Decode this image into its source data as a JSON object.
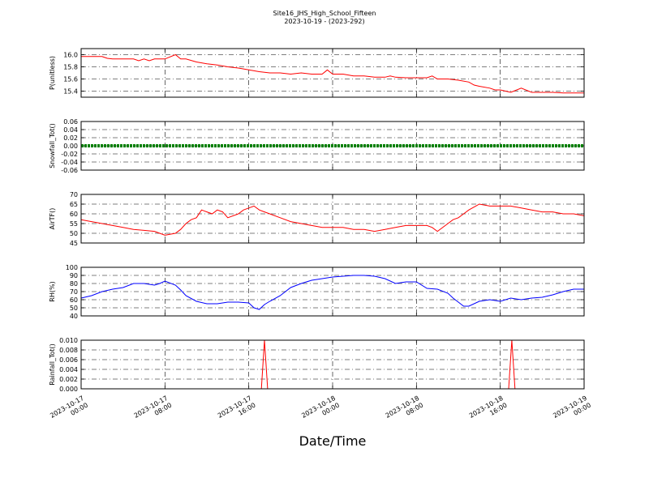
{
  "title": "Site16_JHS_High_School_Fifteen",
  "subtitle": "2023-10-19 - (2023-292)",
  "xlabel": "Date/Time",
  "x_ticks": [
    {
      "line1": "2023-10-17",
      "line2": "00:00"
    },
    {
      "line1": "2023-10-17",
      "line2": "08:00"
    },
    {
      "line1": "2023-10-17",
      "line2": "16:00"
    },
    {
      "line1": "2023-10-18",
      "line2": "00:00"
    },
    {
      "line1": "2023-10-18",
      "line2": "08:00"
    },
    {
      "line1": "2023-10-18",
      "line2": "16:00"
    },
    {
      "line1": "2023-10-19",
      "line2": "00:00"
    }
  ],
  "colors": {
    "pressure": "#ff0000",
    "snowfall": "#008000",
    "air_temp": "#ff0000",
    "rh": "#0000ff",
    "rainfall": "#ff0000"
  },
  "chart_data": [
    {
      "type": "line",
      "ylabel": "P(unitless)",
      "ylim": [
        15.3,
        16.1
      ],
      "yticks": [
        "15.4",
        "15.6",
        "15.8",
        "16.0"
      ],
      "grid": true,
      "x_range_hours": [
        0,
        48
      ],
      "series": [
        {
          "x": [
            0,
            2,
            2.5,
            3,
            5,
            5.5,
            6,
            6.5,
            7,
            7.5,
            8,
            9,
            9.5,
            10,
            11,
            12,
            13,
            14,
            15,
            16,
            17,
            18,
            19,
            20,
            21,
            22,
            23,
            23.5,
            24,
            25,
            26,
            27,
            28,
            29,
            29.5,
            30,
            31,
            32,
            33,
            33.5,
            34,
            35,
            36,
            37,
            37.5,
            38,
            39,
            39.5,
            40,
            41,
            42,
            43,
            44,
            44.5,
            45,
            46,
            47,
            48
          ],
          "y": [
            15.97,
            15.97,
            15.94,
            15.93,
            15.93,
            15.9,
            15.93,
            15.9,
            15.93,
            15.93,
            15.93,
            16.0,
            15.93,
            15.93,
            15.88,
            15.85,
            15.83,
            15.8,
            15.78,
            15.75,
            15.72,
            15.7,
            15.7,
            15.68,
            15.7,
            15.68,
            15.68,
            15.75,
            15.68,
            15.68,
            15.65,
            15.65,
            15.63,
            15.63,
            15.65,
            15.63,
            15.62,
            15.62,
            15.62,
            15.65,
            15.6,
            15.6,
            15.58,
            15.55,
            15.5,
            15.48,
            15.45,
            15.42,
            15.42,
            15.38,
            15.45,
            15.38,
            15.38,
            15.38,
            15.38,
            15.37,
            15.37,
            15.37
          ]
        }
      ]
    },
    {
      "type": "line",
      "ylabel": "Snowfall_Tot()",
      "ylim": [
        -0.06,
        0.06
      ],
      "yticks": [
        "-0.06",
        "-0.04",
        "-0.02",
        "0.00",
        "0.02",
        "0.04",
        "0.06"
      ],
      "grid": true,
      "x_range_hours": [
        0,
        48
      ],
      "series": [
        {
          "x": [
            0,
            48
          ],
          "y": [
            0.0,
            0.0
          ]
        }
      ]
    },
    {
      "type": "line",
      "ylabel": "AirTF()",
      "ylim": [
        45,
        70
      ],
      "yticks": [
        "45",
        "50",
        "55",
        "60",
        "65",
        "70"
      ],
      "grid": true,
      "x_range_hours": [
        0,
        48
      ],
      "series": [
        {
          "x": [
            0,
            1,
            2,
            3,
            4,
            5,
            6,
            7,
            7.5,
            8,
            9,
            9.5,
            10,
            10.5,
            11,
            11.5,
            12,
            12.5,
            13,
            13.5,
            14,
            15,
            15.5,
            16,
            16.5,
            17,
            17.5,
            18,
            19,
            20,
            21,
            22,
            23,
            24,
            25,
            26,
            27,
            28,
            29,
            30,
            31,
            31.5,
            32,
            33,
            33.5,
            34,
            35,
            35.5,
            36,
            36.5,
            37,
            38,
            39,
            40,
            41,
            42,
            43,
            44,
            45,
            46,
            47,
            48
          ],
          "y": [
            57,
            56,
            55,
            54,
            53,
            52,
            51.5,
            51,
            50,
            49,
            50,
            52,
            55,
            57,
            58,
            62,
            61,
            60,
            62,
            61,
            58,
            60,
            62,
            63,
            64,
            62,
            61,
            60,
            58,
            56,
            55,
            54,
            53,
            53,
            53,
            52,
            52,
            51,
            52,
            53,
            54,
            54,
            54,
            54,
            53,
            51,
            55,
            57,
            58,
            60,
            62,
            65,
            64,
            64,
            64,
            63,
            62,
            61,
            61,
            60,
            60,
            59
          ]
        }
      ]
    },
    {
      "type": "line",
      "ylabel": "RH(%)",
      "ylim": [
        40,
        100
      ],
      "yticks": [
        "40",
        "50",
        "60",
        "70",
        "80",
        "90",
        "100"
      ],
      "grid": true,
      "x_range_hours": [
        0,
        48
      ],
      "series": [
        {
          "x": [
            0,
            1,
            2,
            3,
            4,
            5,
            6,
            7,
            7.5,
            8,
            9,
            9.5,
            10,
            11,
            12,
            13,
            14,
            15,
            16,
            16.5,
            17,
            17.5,
            18,
            19,
            20,
            21,
            22,
            23,
            24,
            25,
            26,
            27,
            28,
            29,
            30,
            31,
            32,
            33,
            34,
            35,
            35.5,
            36,
            36.5,
            37,
            38,
            39,
            40,
            41,
            42,
            43,
            44,
            45,
            46,
            47,
            48
          ],
          "y": [
            62,
            65,
            70,
            73,
            75,
            80,
            80,
            78,
            80,
            83,
            78,
            72,
            65,
            58,
            55,
            55,
            57,
            57,
            56,
            50,
            48,
            54,
            58,
            65,
            75,
            80,
            84,
            86,
            88,
            89,
            90,
            90,
            89,
            86,
            80,
            82,
            82,
            74,
            73,
            68,
            62,
            57,
            52,
            52,
            58,
            60,
            58,
            62,
            60,
            62,
            63,
            66,
            70,
            73,
            73
          ]
        }
      ]
    },
    {
      "type": "line",
      "ylabel": "Rainfall_Tot()",
      "ylim": [
        0.0,
        0.01
      ],
      "yticks": [
        "0.000",
        "0.002",
        "0.004",
        "0.006",
        "0.008",
        "0.010"
      ],
      "grid": true,
      "x_range_hours": [
        0,
        48
      ],
      "series": [
        {
          "x": [
            0,
            17.2,
            17.5,
            17.8,
            40.8,
            41.1,
            41.4,
            48
          ],
          "y": [
            0,
            0,
            0.01,
            0,
            0,
            0.01,
            0,
            0
          ]
        }
      ]
    }
  ]
}
